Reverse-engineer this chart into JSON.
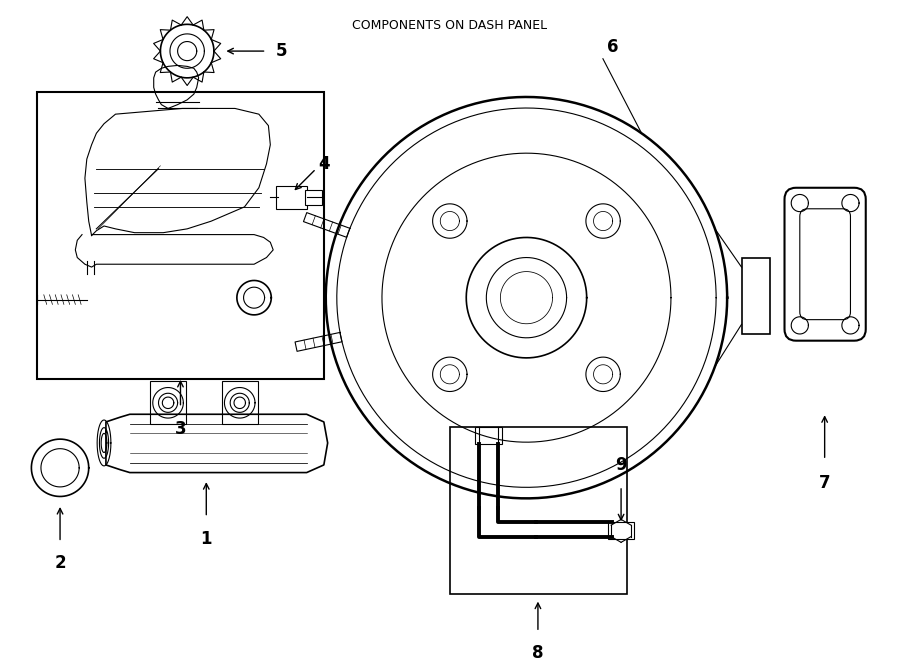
{
  "title": "COMPONENTS ON DASH PANEL",
  "bg_color": "#ffffff",
  "line_color": "#000000",
  "fig_width": 9.0,
  "fig_height": 6.61,
  "dpi": 100
}
